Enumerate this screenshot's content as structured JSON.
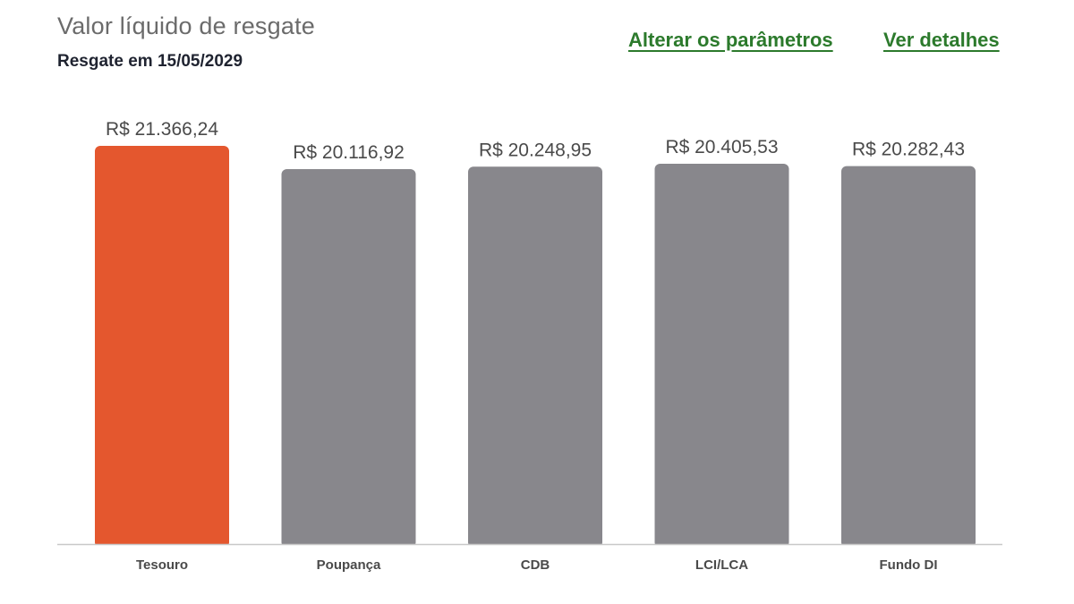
{
  "header": {
    "title": "Valor líquido de resgate",
    "subtitle": "Resgate em 15/05/2029",
    "links": {
      "params_label": "Alterar os parâmetros",
      "details_label": "Ver detalhes"
    }
  },
  "colors": {
    "highlight": "#e4572e",
    "default": "#88878c",
    "link": "#2c7a2c"
  },
  "chart_data": {
    "type": "bar",
    "categories": [
      "Tesouro",
      "Poupança",
      "CDB",
      "LCI/LCA",
      "Fundo DI"
    ],
    "values": [
      21366.24,
      20116.92,
      20248.95,
      20405.53,
      20282.43
    ],
    "value_labels": [
      "R$ 21.366,24",
      "R$ 20.116,92",
      "R$ 20.248,95",
      "R$ 20.405,53",
      "R$ 20.282,43"
    ],
    "highlight_index": 0,
    "ylim": [
      0,
      21366.24
    ],
    "grid": false,
    "legend": "none"
  }
}
